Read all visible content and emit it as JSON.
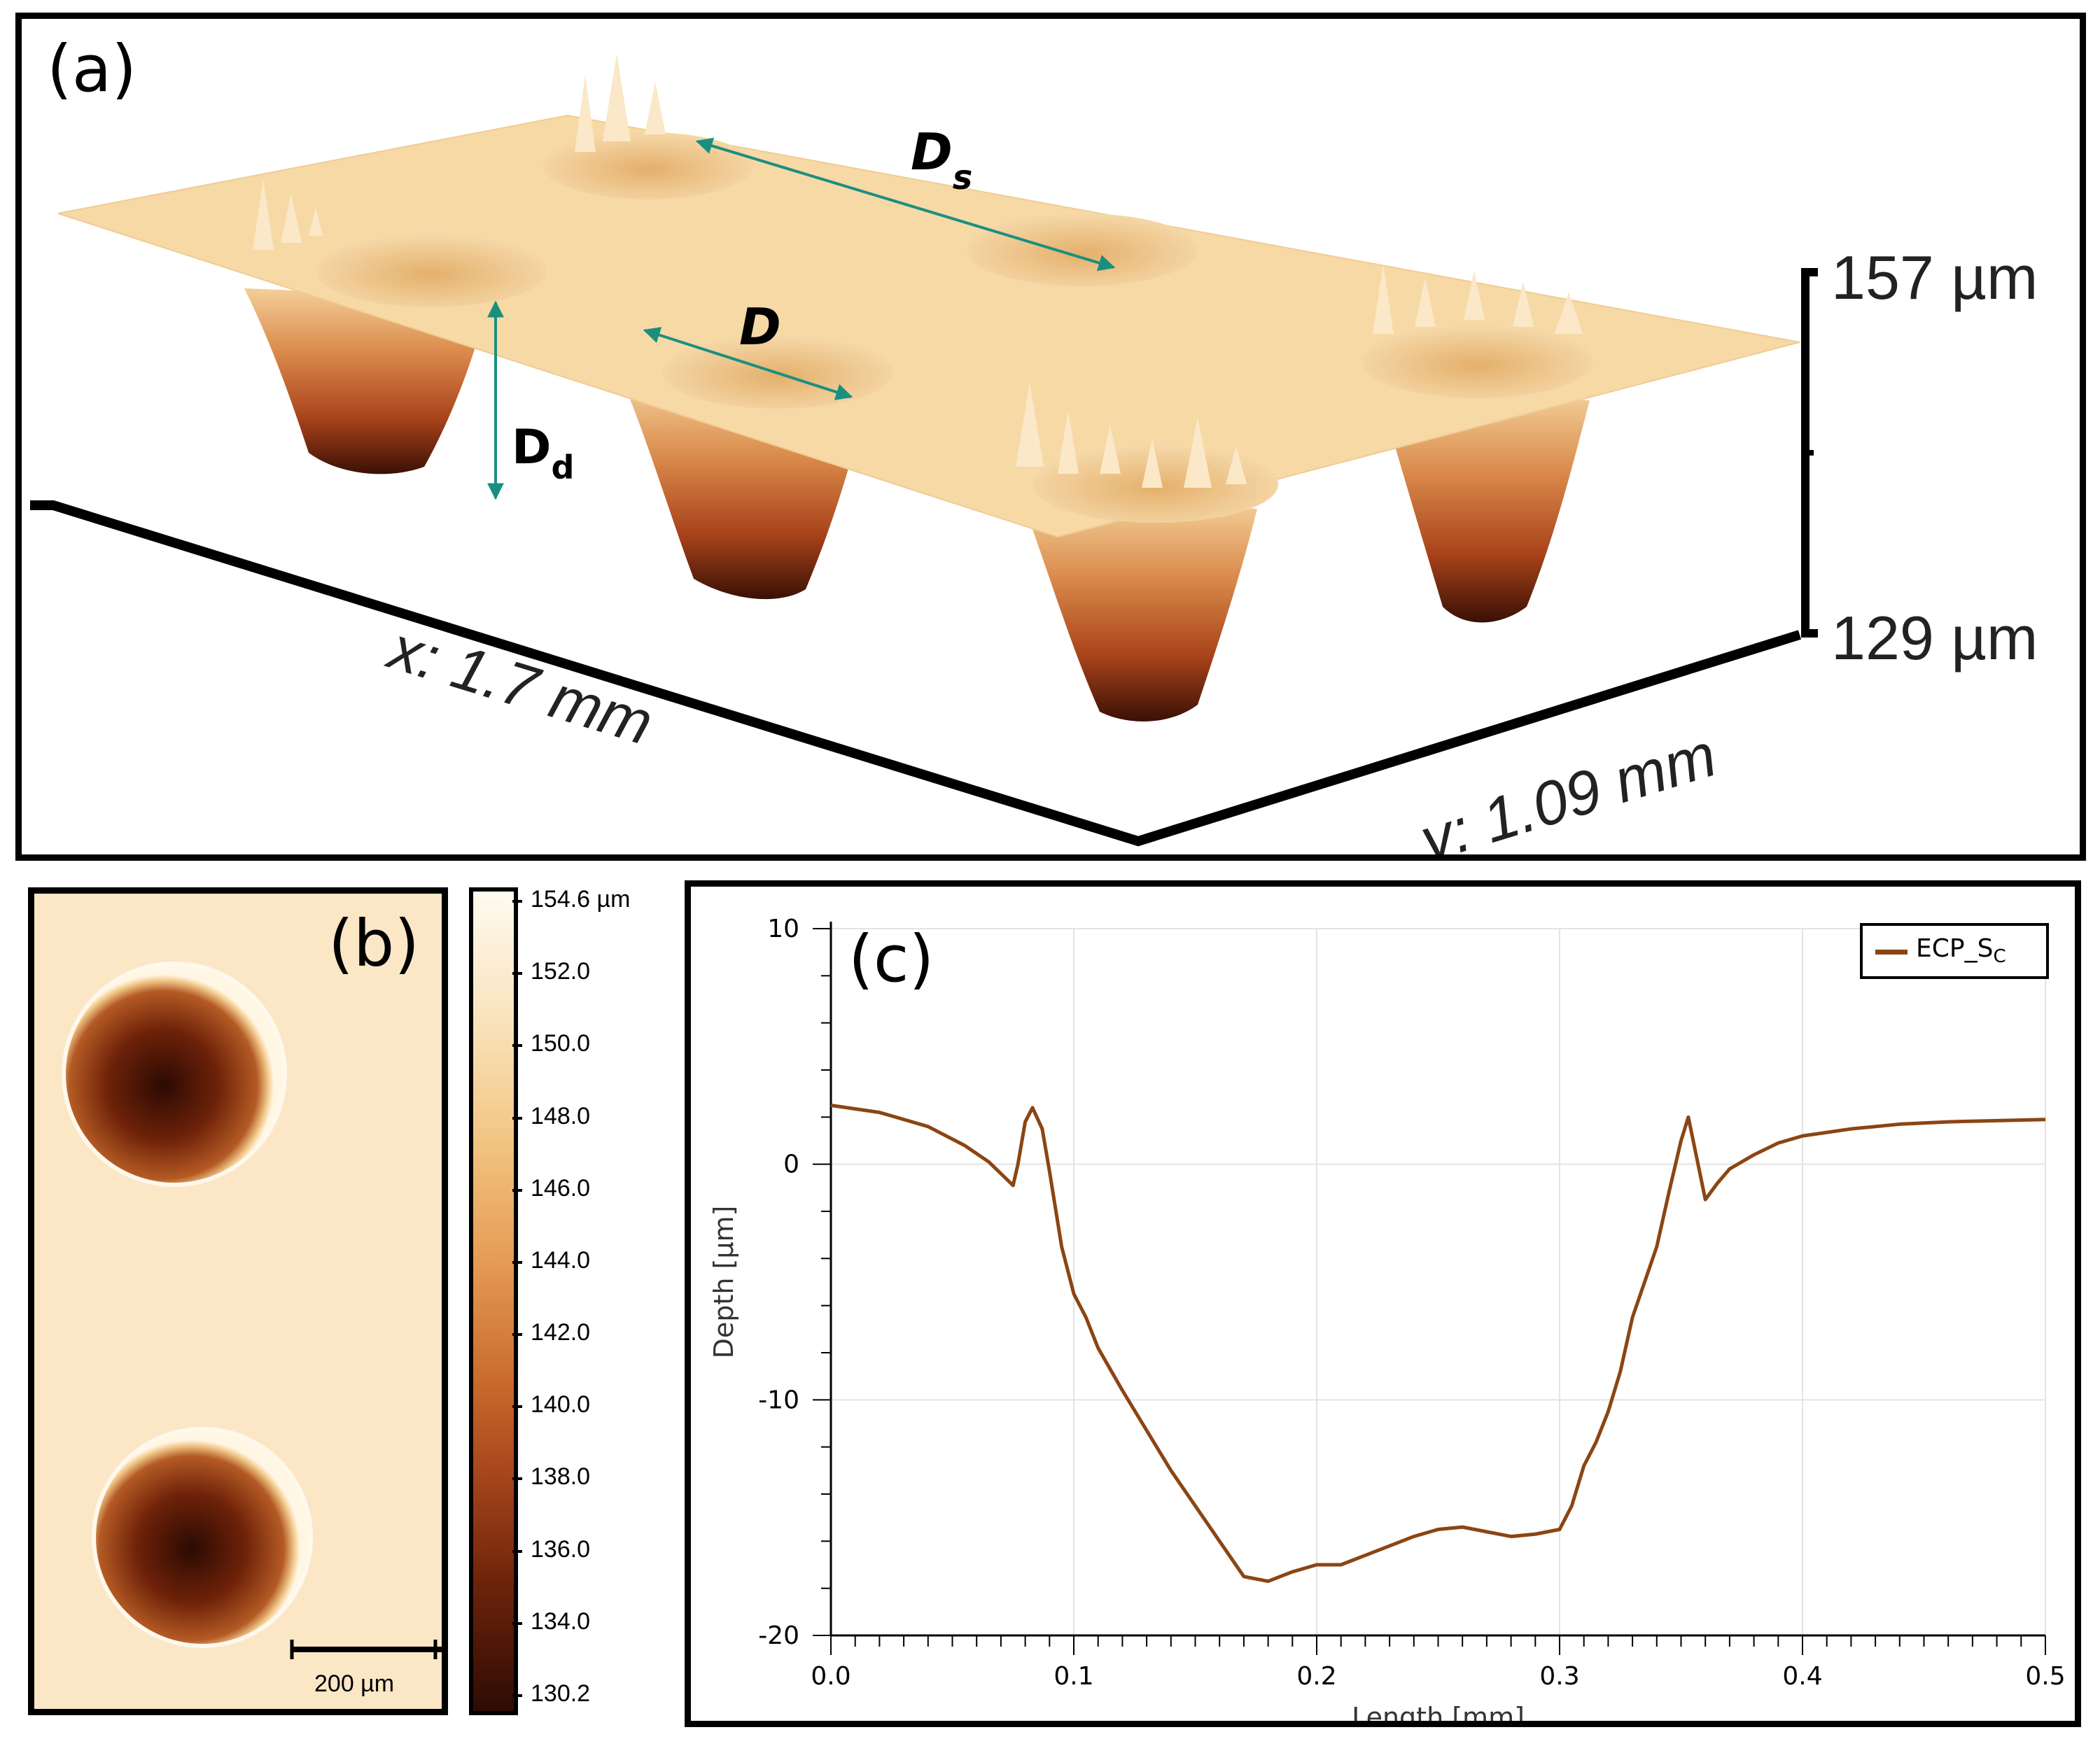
{
  "panel_a": {
    "label": "(a)",
    "annotations": {
      "ds_main": "D",
      "ds_sub": "s",
      "d": "D",
      "dd_main": "D",
      "dd_sub": "d"
    },
    "axes": {
      "x": "x: 1.7 mm",
      "y": "y: 1.09 mm",
      "z_top": "157 µm",
      "z_bottom": "129 µm"
    },
    "colors": {
      "annotation_arrow": "#1a8f80",
      "surface": "#f7d9a6"
    }
  },
  "panel_b": {
    "label": "(b)",
    "scale_bar": "200 µm",
    "colorbar_ticks": [
      "154.6 µm",
      "152.0",
      "150.0",
      "148.0",
      "146.0",
      "144.0",
      "142.0",
      "140.0",
      "138.0",
      "136.0",
      "134.0",
      "130.2"
    ]
  },
  "chart_data": {
    "type": "line",
    "panel_label": "(c)",
    "xlabel": "Length [mm]",
    "ylabel": "Depth [µm]",
    "xlim": [
      0,
      0.5
    ],
    "ylim": [
      -20,
      10
    ],
    "xticks": [
      "0.0",
      "0.1",
      "0.2",
      "0.3",
      "0.4",
      "0.5"
    ],
    "yticks": [
      "10",
      "0",
      "-10",
      "-20"
    ],
    "grid": true,
    "legend_position": "top-right",
    "series": [
      {
        "name": "ECP_SC",
        "legend_main": "ECP_S",
        "legend_sub": "C",
        "color": "#8b4513",
        "x": [
          0.0,
          0.02,
          0.04,
          0.055,
          0.065,
          0.07,
          0.075,
          0.077,
          0.08,
          0.083,
          0.087,
          0.09,
          0.095,
          0.1,
          0.105,
          0.11,
          0.12,
          0.13,
          0.14,
          0.15,
          0.16,
          0.17,
          0.18,
          0.19,
          0.2,
          0.21,
          0.22,
          0.23,
          0.24,
          0.25,
          0.26,
          0.27,
          0.28,
          0.29,
          0.3,
          0.305,
          0.31,
          0.315,
          0.32,
          0.325,
          0.33,
          0.335,
          0.34,
          0.345,
          0.35,
          0.353,
          0.356,
          0.36,
          0.365,
          0.37,
          0.38,
          0.39,
          0.4,
          0.42,
          0.44,
          0.46,
          0.48,
          0.5
        ],
        "y": [
          2.5,
          2.2,
          1.6,
          0.8,
          0.1,
          -0.4,
          -0.9,
          0.0,
          1.8,
          2.4,
          1.5,
          -0.3,
          -3.5,
          -5.5,
          -6.5,
          -7.8,
          -9.6,
          -11.3,
          -13.0,
          -14.5,
          -16.0,
          -17.5,
          -17.7,
          -17.3,
          -17.0,
          -17.0,
          -16.6,
          -16.2,
          -15.8,
          -15.5,
          -15.4,
          -15.6,
          -15.8,
          -15.7,
          -15.5,
          -14.5,
          -12.8,
          -11.8,
          -10.5,
          -8.8,
          -6.5,
          -5.0,
          -3.5,
          -1.2,
          1.0,
          2.0,
          0.5,
          -1.5,
          -0.8,
          -0.2,
          0.4,
          0.9,
          1.2,
          1.5,
          1.7,
          1.8,
          1.85,
          1.9
        ]
      }
    ]
  }
}
